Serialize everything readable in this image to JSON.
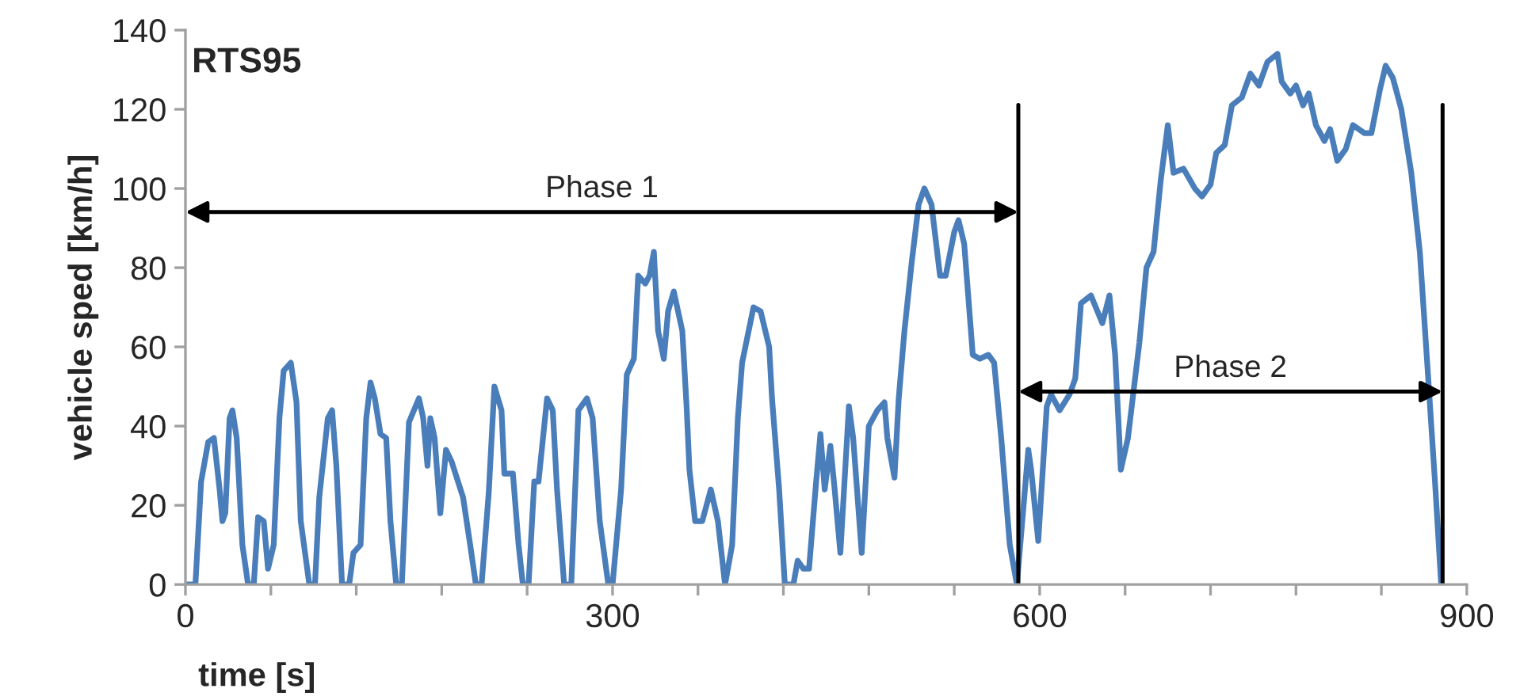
{
  "chart_data": {
    "type": "line",
    "title": "RTS95",
    "xlabel": "time [s]",
    "ylabel": "vehicle sped [km/h]",
    "xlim": [
      0,
      900
    ],
    "ylim": [
      0,
      140
    ],
    "xticks": [
      0,
      {
        "value": 60,
        "label": null
      },
      {
        "value": 120,
        "label": null
      },
      {
        "value": 180,
        "label": null
      },
      {
        "value": 240,
        "label": null
      },
      300,
      {
        "value": 360,
        "label": null
      },
      {
        "value": 420,
        "label": null
      },
      {
        "value": 480,
        "label": null
      },
      {
        "value": 540,
        "label": null
      },
      600,
      {
        "value": 660,
        "label": null
      },
      {
        "value": 720,
        "label": null
      },
      {
        "value": 780,
        "label": null
      },
      {
        "value": 840,
        "label": null
      },
      900
    ],
    "yticks": [
      0,
      20,
      40,
      60,
      80,
      100,
      120,
      140
    ],
    "grid": false,
    "legend": false,
    "marker": "none",
    "line_style": "solid",
    "ref_lines": [
      {
        "axis": "x",
        "value": 585,
        "color": "#000000"
      },
      {
        "axis": "x",
        "value": 883,
        "color": "#000000"
      }
    ],
    "annotations": [
      "Phase 1",
      "Phase 2"
    ],
    "series": [
      {
        "color": "#4a7ebb",
        "x": [
          1,
          7,
          11,
          16,
          20,
          24,
          26,
          28,
          31,
          33,
          36,
          40,
          44,
          48,
          51,
          55,
          58,
          62,
          66,
          69,
          74,
          78,
          81,
          87,
          91,
          94,
          100,
          103,
          106,
          110,
          115,
          118,
          123,
          127,
          130,
          133,
          137,
          141,
          144,
          148,
          152,
          157,
          164,
          167,
          170,
          172,
          175,
          179,
          183,
          187,
          195,
          200,
          204,
          208,
          213,
          217,
          222,
          224,
          230,
          234,
          237,
          241,
          245,
          248,
          254,
          258,
          261,
          266,
          271,
          276,
          282,
          286,
          291,
          297,
          300,
          306,
          310,
          315,
          318,
          323,
          326,
          329,
          332,
          336,
          339,
          343,
          349,
          352,
          354,
          358,
          363,
          369,
          374,
          379,
          384,
          388,
          391,
          399,
          404,
          410,
          412,
          417,
          421,
          427,
          430,
          434,
          438,
          443,
          446,
          449,
          453,
          456,
          460,
          466,
          469,
          475,
          480,
          486,
          491,
          493,
          498,
          501,
          505,
          510,
          515,
          519,
          524,
          530,
          534,
          540,
          543,
          547,
          553,
          558,
          564,
          568,
          573,
          579,
          584,
          592,
          594,
          599,
          605,
          608,
          614,
          621,
          625,
          629,
          636,
          644,
          649,
          653,
          657,
          662,
          670,
          675,
          680,
          685,
          690,
          694,
          701,
          709,
          714,
          720,
          724,
          730,
          735,
          742,
          748,
          754,
          760,
          767,
          770,
          776,
          780,
          785,
          789,
          794,
          800,
          804,
          809,
          815,
          820,
          828,
          833,
          839,
          843,
          848,
          854,
          861,
          867,
          872,
          878,
          882
        ],
        "values": [
          0,
          0,
          26,
          36,
          37,
          24,
          16,
          18,
          42,
          44,
          37,
          10,
          0,
          0,
          17,
          16,
          4,
          10,
          42,
          54,
          56,
          46,
          16,
          0,
          0,
          22,
          42,
          44,
          30,
          0,
          0,
          8,
          10,
          42,
          51,
          47,
          38,
          37,
          16,
          0,
          0,
          41,
          47,
          42,
          30,
          42,
          37,
          18,
          34,
          31,
          22,
          10,
          0,
          0,
          23,
          50,
          44,
          28,
          28,
          10,
          0,
          0,
          26,
          26,
          47,
          44,
          24,
          0,
          0,
          44,
          47,
          42,
          16,
          0,
          0,
          24,
          53,
          57,
          78,
          76,
          78,
          84,
          64,
          57,
          69,
          74,
          64,
          45,
          29,
          16,
          16,
          24,
          16,
          0,
          10,
          42,
          56,
          70,
          69,
          60,
          47,
          24,
          0,
          0,
          6,
          4,
          4,
          26,
          38,
          24,
          35,
          24,
          8,
          45,
          37,
          8,
          40,
          44,
          46,
          37,
          27,
          47,
          64,
          81,
          96,
          100,
          96,
          78,
          78,
          89,
          92,
          86,
          58,
          57,
          58,
          56,
          37,
          10,
          0,
          34,
          29,
          11,
          45,
          48,
          44,
          48,
          52,
          71,
          73,
          66,
          73,
          58,
          29,
          37,
          61,
          80,
          84,
          102,
          116,
          104,
          105,
          100,
          98,
          101,
          109,
          111,
          121,
          123,
          129,
          126,
          132,
          134,
          127,
          124,
          126,
          121,
          124,
          116,
          112,
          115,
          107,
          110,
          116,
          114,
          114,
          125,
          131,
          128,
          120,
          104,
          84,
          57,
          24,
          0
        ]
      }
    ]
  }
}
